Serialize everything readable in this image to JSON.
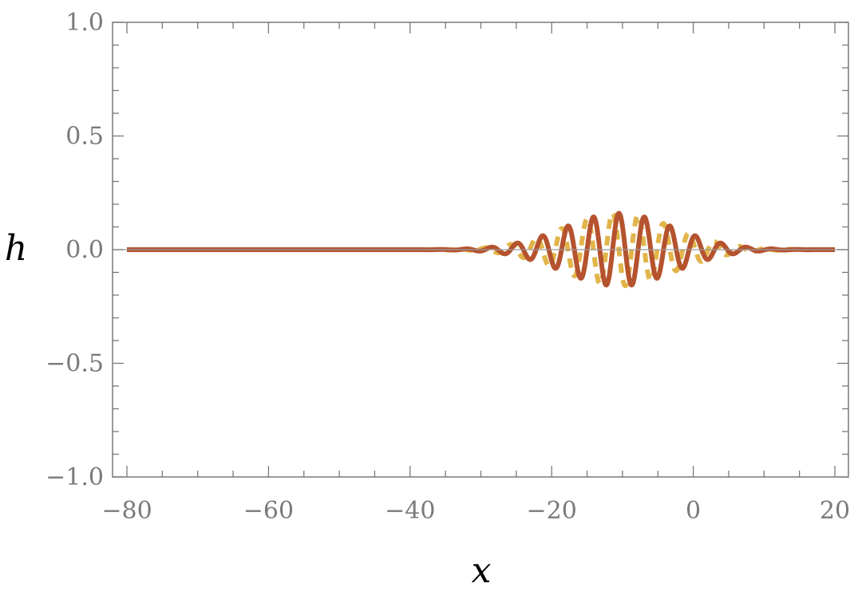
{
  "chart_data": {
    "type": "line",
    "xlabel": "x",
    "ylabel": "h",
    "xlim": [
      -80,
      20
    ],
    "ylim": [
      -1.0,
      1.0
    ],
    "x_ticks": [
      -80,
      -60,
      -40,
      -20,
      0,
      20
    ],
    "x_tick_labels": [
      "−80",
      "−60",
      "−40",
      "−20",
      "0",
      "20"
    ],
    "y_ticks": [
      -1.0,
      -0.5,
      0.0,
      0.5,
      1.0
    ],
    "y_tick_labels": [
      "−1.0",
      "−0.5",
      "0.0",
      "0.5",
      "1.0"
    ],
    "grid": false,
    "series": [
      {
        "style": "solid",
        "color": "#b5532e",
        "wave_packet": {
          "center": -10.5,
          "amplitude": 0.16,
          "wavelength": 3.6,
          "envelope_width": 11,
          "phase": 0.0
        }
      },
      {
        "style": "dashed",
        "color": "#e2b54a",
        "wave_packet": {
          "center": -10.5,
          "amplitude": 0.16,
          "wavelength": 3.6,
          "envelope_width": 11,
          "phase": 1.5708
        }
      }
    ]
  }
}
